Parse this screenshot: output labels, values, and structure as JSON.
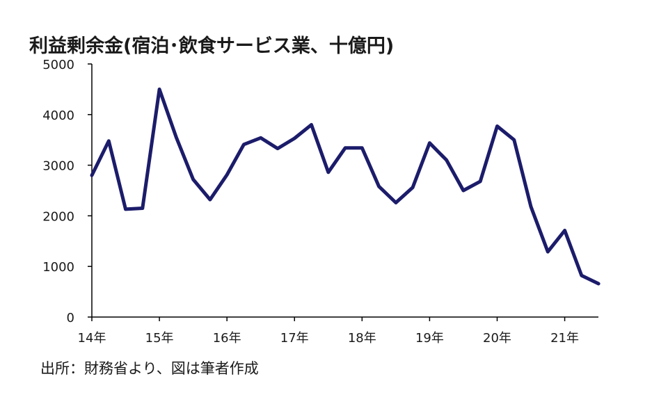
{
  "title": "利益剰余金(宿泊･飲食サービス業、十億円)",
  "source": "出所：財務省より、図は筆者作成",
  "colors": {
    "line": "#1c1c6b",
    "axis": "#000000"
  },
  "chart_data": {
    "type": "line",
    "title": "利益剰余金(宿泊･飲食サービス業、十億円)",
    "xlabel": "",
    "ylabel": "",
    "ylim": [
      0,
      5000
    ],
    "yticks": [
      0,
      1000,
      2000,
      3000,
      4000,
      5000
    ],
    "xtick_labels": [
      "14年",
      "15年",
      "16年",
      "17年",
      "18年",
      "19年",
      "20年",
      "21年"
    ],
    "grid": false,
    "series": [
      {
        "values": [
          2800,
          3480,
          2130,
          2150,
          4500,
          3550,
          2720,
          2320,
          2810,
          3410,
          3540,
          3330,
          3530,
          3800,
          2860,
          3340,
          3340,
          2580,
          2260,
          2560,
          3440,
          3100,
          2500,
          2680,
          3770,
          3500,
          2180,
          1290,
          1710,
          820,
          660
        ]
      }
    ]
  }
}
